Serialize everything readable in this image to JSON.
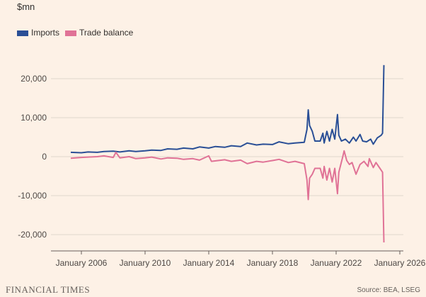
{
  "chart_data": {
    "type": "line",
    "title": "",
    "ylabel": "$mn",
    "ylim": [
      -24000,
      26000
    ],
    "yticks": [
      20000,
      10000,
      0,
      -10000,
      -20000
    ],
    "ytick_labels": [
      "20,000",
      "10,000",
      "0",
      "-10,000",
      "-20,000"
    ],
    "xticks": [
      "2006-01",
      "2010-01",
      "2014-01",
      "2018-01",
      "2022-01",
      "2026-01"
    ],
    "xtick_labels": [
      "January 2006",
      "January 2010",
      "January 2014",
      "January 2018",
      "January 2022",
      "January 2026"
    ],
    "grid": true,
    "legend_placement": "top-left",
    "series": [
      {
        "name": "Imports",
        "color": "#2a4f96",
        "points": [
          [
            "2005-05",
            1100
          ],
          [
            "2006-01",
            1000
          ],
          [
            "2006-06",
            1200
          ],
          [
            "2007-01",
            1100
          ],
          [
            "2007-06",
            1300
          ],
          [
            "2008-01",
            1400
          ],
          [
            "2008-06",
            1200
          ],
          [
            "2009-01",
            1500
          ],
          [
            "2009-06",
            1300
          ],
          [
            "2010-01",
            1500
          ],
          [
            "2010-06",
            1700
          ],
          [
            "2011-01",
            1600
          ],
          [
            "2011-06",
            2000
          ],
          [
            "2012-01",
            1900
          ],
          [
            "2012-06",
            2200
          ],
          [
            "2013-01",
            2000
          ],
          [
            "2013-06",
            2500
          ],
          [
            "2014-01",
            2200
          ],
          [
            "2014-06",
            2600
          ],
          [
            "2015-01",
            2400
          ],
          [
            "2015-06",
            2800
          ],
          [
            "2016-01",
            2600
          ],
          [
            "2016-06",
            3500
          ],
          [
            "2017-01",
            3000
          ],
          [
            "2017-06",
            3200
          ],
          [
            "2018-01",
            3100
          ],
          [
            "2018-06",
            3800
          ],
          [
            "2019-01",
            3300
          ],
          [
            "2019-06",
            3500
          ],
          [
            "2020-01",
            3700
          ],
          [
            "2020-03",
            7000
          ],
          [
            "2020-04",
            12000
          ],
          [
            "2020-05",
            8000
          ],
          [
            "2020-07",
            6500
          ],
          [
            "2020-09",
            4000
          ],
          [
            "2021-01",
            4000
          ],
          [
            "2021-03",
            6000
          ],
          [
            "2021-04",
            3500
          ],
          [
            "2021-06",
            6500
          ],
          [
            "2021-08",
            4000
          ],
          [
            "2021-10",
            7000
          ],
          [
            "2021-12",
            4500
          ],
          [
            "2022-02",
            10800
          ],
          [
            "2022-03",
            5500
          ],
          [
            "2022-05",
            4000
          ],
          [
            "2022-08",
            4500
          ],
          [
            "2022-11",
            3500
          ],
          [
            "2023-02",
            5000
          ],
          [
            "2023-04",
            4000
          ],
          [
            "2023-07",
            5700
          ],
          [
            "2023-09",
            4000
          ],
          [
            "2023-12",
            3800
          ],
          [
            "2024-03",
            4500
          ],
          [
            "2024-05",
            3200
          ],
          [
            "2024-08",
            4800
          ],
          [
            "2024-11",
            5500
          ],
          [
            "2024-12",
            6000
          ],
          [
            "2025-01",
            23500
          ]
        ]
      },
      {
        "name": "Trade balance",
        "color": "#e07296",
        "points": [
          [
            "2005-05",
            -400
          ],
          [
            "2006-01",
            -200
          ],
          [
            "2006-06",
            -100
          ],
          [
            "2007-01",
            0
          ],
          [
            "2007-06",
            200
          ],
          [
            "2008-01",
            -200
          ],
          [
            "2008-03",
            1100
          ],
          [
            "2008-06",
            -300
          ],
          [
            "2009-01",
            0
          ],
          [
            "2009-06",
            -500
          ],
          [
            "2010-01",
            -300
          ],
          [
            "2010-06",
            -100
          ],
          [
            "2011-01",
            -600
          ],
          [
            "2011-06",
            -300
          ],
          [
            "2012-01",
            -400
          ],
          [
            "2012-06",
            -700
          ],
          [
            "2013-01",
            -500
          ],
          [
            "2013-06",
            -900
          ],
          [
            "2014-01",
            200
          ],
          [
            "2014-03",
            -1200
          ],
          [
            "2015-01",
            -800
          ],
          [
            "2015-06",
            -1200
          ],
          [
            "2016-01",
            -900
          ],
          [
            "2016-06",
            -1800
          ],
          [
            "2017-01",
            -1200
          ],
          [
            "2017-06",
            -1400
          ],
          [
            "2018-01",
            -1000
          ],
          [
            "2018-06",
            -700
          ],
          [
            "2019-01",
            -1500
          ],
          [
            "2019-06",
            -1200
          ],
          [
            "2020-01",
            -1800
          ],
          [
            "2020-03",
            -6000
          ],
          [
            "2020-04",
            -11000
          ],
          [
            "2020-05",
            -5500
          ],
          [
            "2020-07",
            -4500
          ],
          [
            "2020-09",
            -3000
          ],
          [
            "2021-01",
            -3000
          ],
          [
            "2021-03",
            -5500
          ],
          [
            "2021-04",
            -2500
          ],
          [
            "2021-06",
            -6000
          ],
          [
            "2021-08",
            -3000
          ],
          [
            "2021-10",
            -6500
          ],
          [
            "2021-12",
            -3000
          ],
          [
            "2022-02",
            -9500
          ],
          [
            "2022-03",
            -4000
          ],
          [
            "2022-06",
            0
          ],
          [
            "2022-07",
            1500
          ],
          [
            "2022-09",
            -1000
          ],
          [
            "2022-11",
            -2000
          ],
          [
            "2023-01",
            -1500
          ],
          [
            "2023-04",
            -4500
          ],
          [
            "2023-07",
            -2000
          ],
          [
            "2023-10",
            -1200
          ],
          [
            "2024-01",
            -2500
          ],
          [
            "2024-02",
            -500
          ],
          [
            "2024-05",
            -2800
          ],
          [
            "2024-07",
            -1500
          ],
          [
            "2024-10",
            -3000
          ],
          [
            "2024-12",
            -4000
          ],
          [
            "2025-01",
            -22000
          ]
        ]
      }
    ]
  },
  "unit_label": "$mn",
  "legend": [
    {
      "label": "Imports",
      "color": "#2a4f96"
    },
    {
      "label": "Trade balance",
      "color": "#e07296"
    }
  ],
  "brand": "FINANCIAL TIMES",
  "source": "Source: BEA, LSEG"
}
